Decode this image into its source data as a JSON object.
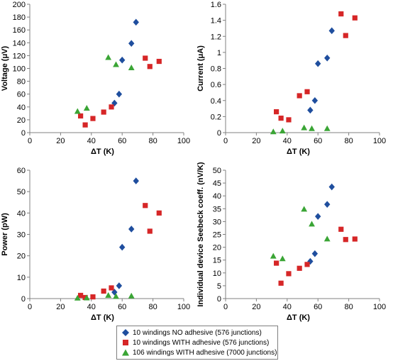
{
  "colors": {
    "no_adhesive": "#1f4e9e",
    "with_adhesive": "#d62627",
    "windings_106": "#3aa535",
    "axis": "#808080"
  },
  "legend": {
    "entries": [
      {
        "label": "10 windings NO adhesive (576 junctions)",
        "marker": "diamond",
        "color": "#1f4e9e"
      },
      {
        "label": "10 windings WITH adhesive (576 junctions)",
        "marker": "square",
        "color": "#d62627"
      },
      {
        "label": "106 windings WITH adhesive (7000 junctions)",
        "marker": "triangle",
        "color": "#3aa535"
      }
    ]
  },
  "chart_data": [
    {
      "type": "scatter",
      "xlabel": "ΔT (K)",
      "ylabel": "Voltage (μV)",
      "xlim": [
        0,
        100
      ],
      "ylim": [
        0,
        200
      ],
      "xticks": [
        "0",
        "20",
        "40",
        "60",
        "80",
        "100"
      ],
      "yticks": [
        "0",
        "20",
        "40",
        "60",
        "80",
        "100",
        "120",
        "140",
        "160",
        "180",
        "200"
      ],
      "series": [
        {
          "name": "10 windings NO adhesive (576 junctions)",
          "marker": "diamond",
          "color": "#1f4e9e",
          "points": [
            [
              55,
              46
            ],
            [
              58,
              60
            ],
            [
              60,
              113
            ],
            [
              66,
              139
            ],
            [
              69,
              172
            ]
          ]
        },
        {
          "name": "10 windings WITH adhesive (576 junctions)",
          "marker": "square",
          "color": "#d62627",
          "points": [
            [
              33,
              26
            ],
            [
              36,
              12
            ],
            [
              41,
              22
            ],
            [
              48,
              32
            ],
            [
              53,
              40
            ],
            [
              75,
              116
            ],
            [
              78,
              103
            ],
            [
              84,
              111
            ]
          ]
        },
        {
          "name": "106 windings WITH adhesive (7000 junctions)",
          "marker": "triangle",
          "color": "#3aa535",
          "points": [
            [
              31,
              33
            ],
            [
              37,
              38
            ],
            [
              51,
              117
            ],
            [
              56,
              106
            ],
            [
              66,
              101
            ]
          ]
        }
      ]
    },
    {
      "type": "scatter",
      "xlabel": "ΔT (K)",
      "ylabel": "Current (μA)",
      "xlim": [
        0,
        100
      ],
      "ylim": [
        0,
        1.6
      ],
      "xticks": [
        "0",
        "20",
        "40",
        "60",
        "80",
        "100"
      ],
      "yticks": [
        "0",
        "0.2",
        "0.4",
        "0.6",
        "0.8",
        "1",
        "1.2",
        "1.4",
        "1.6"
      ],
      "series": [
        {
          "name": "10 windings NO adhesive (576 junctions)",
          "marker": "diamond",
          "color": "#1f4e9e",
          "points": [
            [
              55,
              0.28
            ],
            [
              58,
              0.4
            ],
            [
              60,
              0.86
            ],
            [
              66,
              0.93
            ],
            [
              69,
              1.27
            ]
          ]
        },
        {
          "name": "10 windings WITH adhesive (576 junctions)",
          "marker": "square",
          "color": "#d62627",
          "points": [
            [
              33,
              0.26
            ],
            [
              36,
              0.18
            ],
            [
              41,
              0.16
            ],
            [
              48,
              0.46
            ],
            [
              53,
              0.51
            ],
            [
              75,
              1.48
            ],
            [
              78,
              1.21
            ],
            [
              84,
              1.43
            ]
          ]
        },
        {
          "name": "106 windings WITH adhesive (7000 junctions)",
          "marker": "triangle",
          "color": "#3aa535",
          "points": [
            [
              31,
              0.01
            ],
            [
              37,
              0.02
            ],
            [
              51,
              0.06
            ],
            [
              56,
              0.05
            ],
            [
              66,
              0.05
            ]
          ]
        }
      ]
    },
    {
      "type": "scatter",
      "xlabel": "ΔT (K)",
      "ylabel": "Power (pW)",
      "xlim": [
        0,
        100
      ],
      "ylim": [
        0,
        60
      ],
      "xticks": [
        "0",
        "20",
        "40",
        "60",
        "80",
        "100"
      ],
      "yticks": [
        "0",
        "10",
        "20",
        "30",
        "40",
        "50",
        "60"
      ],
      "series": [
        {
          "name": "10 windings NO adhesive (576 junctions)",
          "marker": "diamond",
          "color": "#1f4e9e",
          "points": [
            [
              55,
              3
            ],
            [
              58,
              6
            ],
            [
              60,
              24
            ],
            [
              66,
              32.5
            ],
            [
              69,
              55
            ]
          ]
        },
        {
          "name": "10 windings WITH adhesive (576 junctions)",
          "marker": "square",
          "color": "#d62627",
          "points": [
            [
              33,
              1.5
            ],
            [
              36,
              0.5
            ],
            [
              41,
              0.8
            ],
            [
              48,
              3.5
            ],
            [
              53,
              5
            ],
            [
              75,
              43.5
            ],
            [
              78,
              31.5
            ],
            [
              84,
              40
            ]
          ]
        },
        {
          "name": "106 windings WITH adhesive (7000 junctions)",
          "marker": "triangle",
          "color": "#3aa535",
          "points": [
            [
              31,
              0.2
            ],
            [
              37,
              0.3
            ],
            [
              51,
              1.5
            ],
            [
              56,
              1
            ],
            [
              66,
              1.2
            ]
          ]
        }
      ]
    },
    {
      "type": "scatter",
      "xlabel": "ΔT (K)",
      "ylabel": "Individual device Seebeck coeff. (nV/K)",
      "xlim": [
        0,
        100
      ],
      "ylim": [
        0,
        50
      ],
      "xticks": [
        "0",
        "20",
        "40",
        "60",
        "80",
        "100"
      ],
      "yticks": [
        "0",
        "5",
        "10",
        "15",
        "20",
        "25",
        "30",
        "35",
        "40",
        "45",
        "50"
      ],
      "series": [
        {
          "name": "10 windings NO adhesive (576 junctions)",
          "marker": "diamond",
          "color": "#1f4e9e",
          "points": [
            [
              55,
              14.5
            ],
            [
              58,
              17.5
            ],
            [
              60,
              32
            ],
            [
              66,
              36.7
            ],
            [
              69,
              43.5
            ]
          ]
        },
        {
          "name": "10 windings WITH adhesive (576 junctions)",
          "marker": "square",
          "color": "#d62627",
          "points": [
            [
              33,
              13.8
            ],
            [
              36,
              6
            ],
            [
              41,
              9.7
            ],
            [
              48,
              11.8
            ],
            [
              53,
              13.3
            ],
            [
              75,
              27
            ],
            [
              78,
              23
            ],
            [
              84,
              23.2
            ]
          ]
        },
        {
          "name": "106 windings WITH adhesive (7000 junctions)",
          "marker": "triangle",
          "color": "#3aa535",
          "points": [
            [
              31,
              16.5
            ],
            [
              37,
              15.5
            ],
            [
              51,
              34.8
            ],
            [
              56,
              29
            ],
            [
              66,
              23.2
            ]
          ]
        }
      ]
    }
  ]
}
